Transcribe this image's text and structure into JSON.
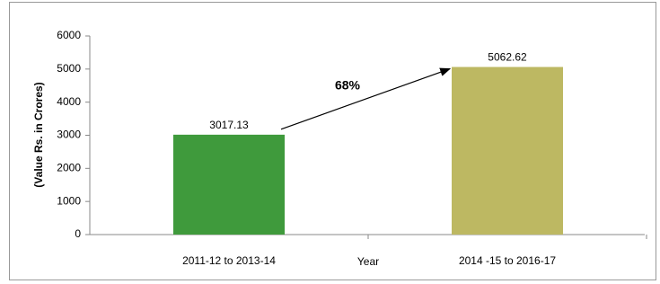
{
  "chart_data": {
    "type": "bar",
    "y_label": "(Value Rs. in Crores)",
    "x_label": "Year",
    "annotation": "68%",
    "categories": [
      "2011-12 to 2013-14",
      "2014 -15 to 2016-17"
    ],
    "values": [
      3017.13,
      5062.62
    ],
    "colors": [
      "#3f9a3c",
      "#bdb862"
    ],
    "ylim": [
      0,
      6000
    ],
    "yticks": [
      0,
      1000,
      2000,
      3000,
      4000,
      5000,
      6000
    ]
  }
}
